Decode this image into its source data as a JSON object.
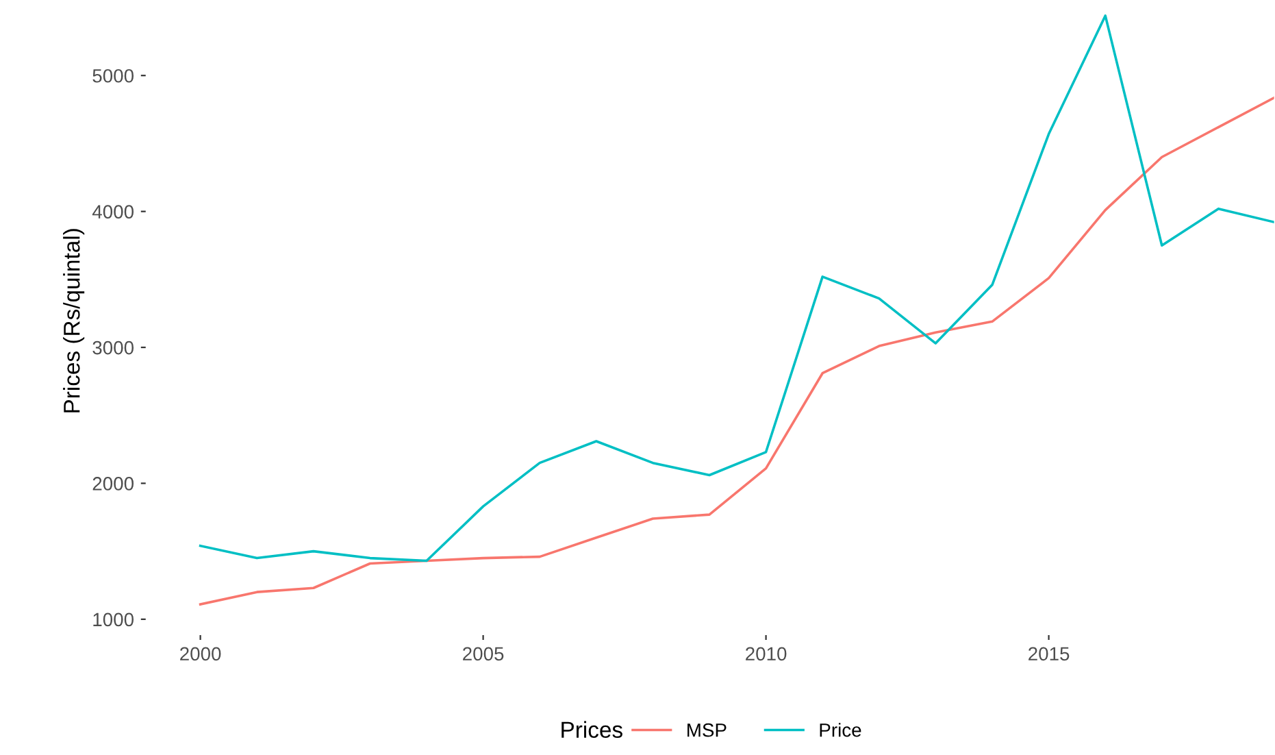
{
  "chart_data": {
    "type": "line",
    "ylabel": "Prices (Rs/quintal)",
    "legend_title": "Prices",
    "legend": "bottom",
    "grid": false,
    "x": [
      2000,
      2001,
      2002,
      2003,
      2004,
      2005,
      2006,
      2007,
      2008,
      2009,
      2010,
      2011,
      2012,
      2013,
      2014,
      2015,
      2016,
      2017,
      2018,
      2019
    ],
    "series": [
      {
        "name": "MSP",
        "color": "#f8766d",
        "values": [
          1110,
          1200,
          1230,
          1410,
          1430,
          1450,
          1460,
          1600,
          1740,
          1770,
          2110,
          2810,
          3010,
          3110,
          3190,
          3510,
          4010,
          4400,
          4620,
          4840
        ]
      },
      {
        "name": "Price",
        "color": "#00bfc4",
        "values": [
          1540,
          1450,
          1500,
          1450,
          1430,
          1830,
          2150,
          2310,
          2150,
          2060,
          2230,
          3520,
          3360,
          3030,
          3460,
          4570,
          5440,
          3750,
          4020,
          3920
        ]
      }
    ],
    "xlim": [
      1999.05,
      2019
    ],
    "ylim": [
      890,
      5500
    ],
    "xticks": [
      2000,
      2005,
      2010,
      2015
    ],
    "yticks": [
      1000,
      2000,
      3000,
      4000,
      5000
    ]
  }
}
